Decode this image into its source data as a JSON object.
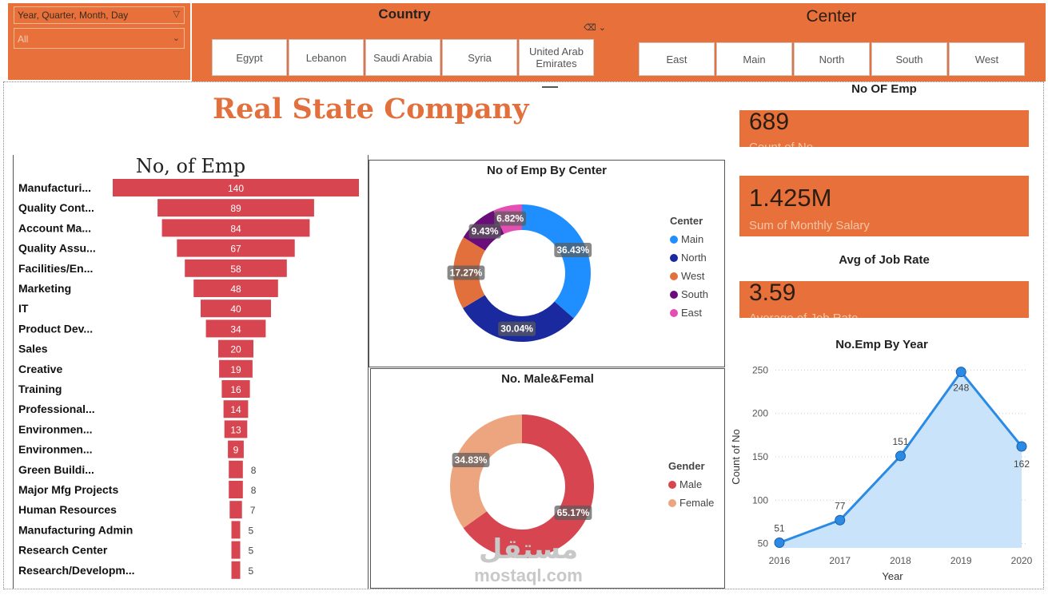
{
  "filters": {
    "date_hierarchy": "Year, Quarter, Month, Day",
    "date_value": "All",
    "country_title": "Country",
    "countries": [
      "Egypt",
      "Lebanon",
      "Saudi Arabia",
      "Syria",
      "United Arab Emirates"
    ],
    "center_title": "Center",
    "centers": [
      "East",
      "Main",
      "North",
      "South",
      "West"
    ]
  },
  "page_title": "Real State Company",
  "kpis": {
    "emp_heading": "No OF Emp",
    "emp_value": "689",
    "emp_label": "Count of No",
    "salary_value": "1.425M",
    "salary_label": "Sum of Monthly Salary",
    "jobrate_heading": "Avg of Job Rate",
    "jobrate_value": "3.59",
    "jobrate_label": "Average of Job Rate"
  },
  "watermark": "mostaql.com",
  "colors": {
    "accent": "#e8703a",
    "funnel_bar": "#d64550",
    "main": "#1f8fff",
    "north": "#1a2a9e",
    "west": "#e2703d",
    "south": "#6a0c7a",
    "east": "#e44fb4",
    "male": "#d64550",
    "female": "#eda580",
    "line": "#2a8ae4",
    "area": "#c9e4fa"
  },
  "chart_data": [
    {
      "type": "bar",
      "subtype": "funnel",
      "title": "No, of Emp",
      "categories": [
        "Manufacturi...",
        "Quality Cont...",
        "Account Ma...",
        "Quality Assu...",
        "Facilities/En...",
        "Marketing",
        "IT",
        "Product Dev...",
        "Sales",
        "Creative",
        "Training",
        "Professional...",
        "Environmen...",
        "Environmen...",
        "Green Buildi...",
        "Major Mfg Projects",
        "Human Resources",
        "Manufacturing Admin",
        "Research Center",
        "Research/Developm..."
      ],
      "values": [
        140,
        89,
        84,
        67,
        58,
        48,
        40,
        34,
        20,
        19,
        16,
        14,
        13,
        9,
        8,
        8,
        7,
        5,
        5,
        5
      ]
    },
    {
      "type": "pie",
      "subtype": "donut",
      "title": "No of Emp By Center",
      "legend_title": "Center",
      "categories": [
        "Main",
        "North",
        "West",
        "South",
        "East"
      ],
      "values": [
        36.43,
        30.04,
        17.27,
        9.43,
        6.82
      ],
      "labels": [
        "36.43%",
        "30.04%",
        "17.27%",
        "9.43%",
        "6.82%"
      ]
    },
    {
      "type": "pie",
      "subtype": "donut",
      "title": "No. Male&Femal",
      "legend_title": "Gender",
      "categories": [
        "Male",
        "Female"
      ],
      "values": [
        65.17,
        34.83
      ],
      "labels": [
        "65.17%",
        "34.83%"
      ]
    },
    {
      "type": "area",
      "title": "No.Emp By Year",
      "xlabel": "Year",
      "ylabel": "Count of No",
      "x": [
        "2016",
        "2017",
        "2018",
        "2019",
        "2020"
      ],
      "values": [
        51,
        77,
        151,
        248,
        162
      ],
      "ylim": [
        45,
        255
      ],
      "yticks": [
        50,
        100,
        150,
        200,
        250
      ]
    }
  ]
}
